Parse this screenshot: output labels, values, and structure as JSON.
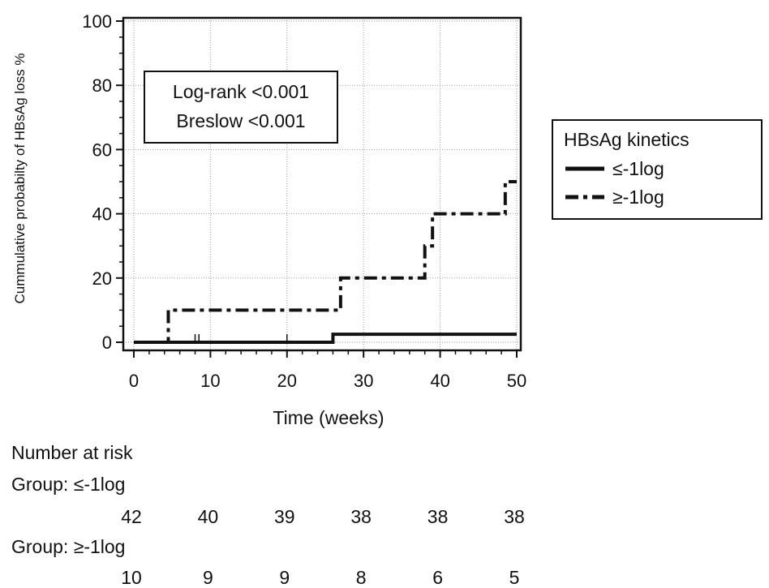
{
  "chart_data": {
    "type": "line",
    "step": true,
    "ylabel": "Cummulative probabilty of HBsAg loss %",
    "xlabel": "Time (weeks)",
    "xlim": [
      0,
      50
    ],
    "ylim": [
      0,
      100
    ],
    "xticks": [
      0,
      10,
      20,
      30,
      40,
      50
    ],
    "yticks": [
      0,
      20,
      40,
      60,
      80,
      100
    ],
    "grid": true,
    "annotation": {
      "lines": [
        "Log-rank <0.001",
        "Breslow <0.001"
      ]
    },
    "legend": {
      "title": "HBsAg kinetics",
      "position": "right"
    },
    "series": [
      {
        "name": "≤-1log",
        "style": "solid",
        "x": [
          0,
          26,
          50
        ],
        "y": [
          0,
          2.5,
          2.5
        ],
        "censor_x": [
          8,
          8.5,
          20
        ]
      },
      {
        "name": "≥-1log",
        "style": "dash-dot",
        "x": [
          0,
          4.5,
          27,
          38,
          39,
          48.5,
          50
        ],
        "y": [
          0,
          10,
          20,
          30,
          40,
          50,
          50
        ],
        "censor_x": []
      }
    ],
    "number_at_risk": {
      "title": "Number at risk",
      "groups": [
        {
          "label": "Group: ≤-1log",
          "values": [
            "42",
            "40",
            "39",
            "38",
            "38",
            "38"
          ]
        },
        {
          "label": "Group: ≥-1log",
          "values": [
            "10",
            "9",
            "9",
            "8",
            "6",
            "5"
          ]
        }
      ]
    }
  }
}
